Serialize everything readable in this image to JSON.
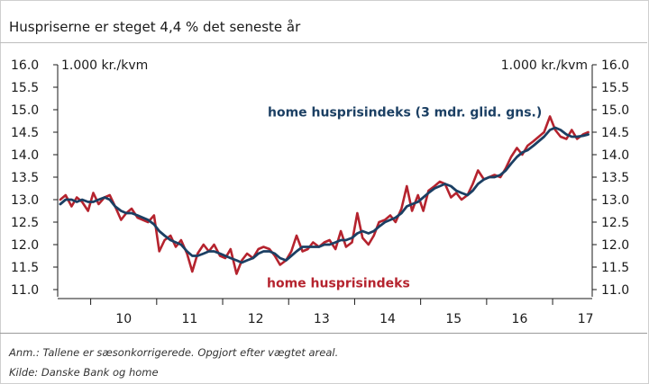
{
  "header": {
    "title": "Huspriserne er steget 4,4 % det seneste år"
  },
  "footer": {
    "note": "Anm.: Tallene er sæsonkorrigerede. Opgjort efter vægtet areal.",
    "source": "Kilde: Danske Bank og home"
  },
  "chart_data": {
    "type": "line",
    "title": "Huspriserne er steget 4,4 % det seneste år",
    "y_unit_left": "1.000 kr./kvm",
    "y_unit_right": "1.000 kr./kvm",
    "ylim": [
      11.0,
      16.0
    ],
    "yticks": [
      "11.0",
      "11.5",
      "12.0",
      "12.5",
      "13.0",
      "13.5",
      "14.0",
      "14.5",
      "15.0",
      "15.5",
      "16.0"
    ],
    "xlim": [
      2009.5,
      2017.6
    ],
    "xtick_labels": [
      "10",
      "11",
      "12",
      "13",
      "14",
      "15",
      "16",
      "17"
    ],
    "grid": false,
    "colors": {
      "raw": "#b5232e",
      "smoothed": "#1b3f63",
      "axis": "#1a1a1a"
    },
    "series": [
      {
        "name": "home husprisindeks",
        "label_position": "bottom-middle",
        "x": [
          2009.54,
          2009.62,
          2009.71,
          2009.79,
          2009.87,
          2009.96,
          2010.04,
          2010.12,
          2010.21,
          2010.29,
          2010.37,
          2010.46,
          2010.54,
          2010.62,
          2010.71,
          2010.79,
          2010.87,
          2010.96,
          2011.04,
          2011.12,
          2011.21,
          2011.29,
          2011.37,
          2011.46,
          2011.54,
          2011.62,
          2011.71,
          2011.79,
          2011.87,
          2011.96,
          2012.04,
          2012.12,
          2012.21,
          2012.29,
          2012.37,
          2012.46,
          2012.54,
          2012.62,
          2012.71,
          2012.79,
          2012.87,
          2012.96,
          2013.04,
          2013.12,
          2013.21,
          2013.29,
          2013.37,
          2013.46,
          2013.54,
          2013.62,
          2013.71,
          2013.79,
          2013.87,
          2013.96,
          2014.04,
          2014.12,
          2014.21,
          2014.29,
          2014.37,
          2014.46,
          2014.54,
          2014.62,
          2014.71,
          2014.79,
          2014.87,
          2014.96,
          2015.04,
          2015.12,
          2015.21,
          2015.29,
          2015.37,
          2015.46,
          2015.54,
          2015.62,
          2015.71,
          2015.79,
          2015.87,
          2015.96,
          2016.04,
          2016.12,
          2016.21,
          2016.29,
          2016.37,
          2016.46,
          2016.54,
          2016.62,
          2016.71,
          2016.79,
          2016.87,
          2016.96,
          2017.04,
          2017.12,
          2017.21,
          2017.29,
          2017.37,
          2017.46,
          2017.54
        ],
        "y": [
          13.0,
          13.1,
          12.85,
          13.05,
          12.95,
          12.75,
          13.15,
          12.9,
          13.05,
          13.1,
          12.85,
          12.55,
          12.7,
          12.8,
          12.6,
          12.55,
          12.5,
          12.65,
          11.85,
          12.1,
          12.2,
          11.95,
          12.1,
          11.8,
          11.4,
          11.8,
          12.0,
          11.85,
          12.0,
          11.75,
          11.7,
          11.9,
          11.35,
          11.65,
          11.8,
          11.7,
          11.9,
          11.95,
          11.9,
          11.75,
          11.55,
          11.65,
          11.85,
          12.2,
          11.85,
          11.9,
          12.05,
          11.95,
          12.05,
          12.1,
          11.9,
          12.3,
          11.95,
          12.05,
          12.7,
          12.15,
          12.0,
          12.2,
          12.5,
          12.55,
          12.65,
          12.5,
          12.8,
          13.3,
          12.75,
          13.1,
          12.75,
          13.2,
          13.3,
          13.4,
          13.35,
          13.05,
          13.15,
          13.0,
          13.1,
          13.35,
          13.65,
          13.45,
          13.5,
          13.55,
          13.5,
          13.7,
          13.95,
          14.15,
          14.0,
          14.2,
          14.3,
          14.4,
          14.5,
          14.85,
          14.55,
          14.4,
          14.35,
          14.55,
          14.35,
          14.45,
          14.5
        ]
      },
      {
        "name": "home husprisindeks (3 mdr. glid. gns.)",
        "label_position": "top-middle",
        "x": [
          2009.54,
          2009.62,
          2009.71,
          2009.79,
          2009.87,
          2009.96,
          2010.04,
          2010.12,
          2010.21,
          2010.29,
          2010.37,
          2010.46,
          2010.54,
          2010.62,
          2010.71,
          2010.79,
          2010.87,
          2010.96,
          2011.04,
          2011.12,
          2011.21,
          2011.29,
          2011.37,
          2011.46,
          2011.54,
          2011.62,
          2011.71,
          2011.79,
          2011.87,
          2011.96,
          2012.04,
          2012.12,
          2012.21,
          2012.29,
          2012.37,
          2012.46,
          2012.54,
          2012.62,
          2012.71,
          2012.79,
          2012.87,
          2012.96,
          2013.04,
          2013.12,
          2013.21,
          2013.29,
          2013.37,
          2013.46,
          2013.54,
          2013.62,
          2013.71,
          2013.79,
          2013.87,
          2013.96,
          2014.04,
          2014.12,
          2014.21,
          2014.29,
          2014.37,
          2014.46,
          2014.54,
          2014.62,
          2014.71,
          2014.79,
          2014.87,
          2014.96,
          2015.04,
          2015.12,
          2015.21,
          2015.29,
          2015.37,
          2015.46,
          2015.54,
          2015.62,
          2015.71,
          2015.79,
          2015.87,
          2015.96,
          2016.04,
          2016.12,
          2016.21,
          2016.29,
          2016.37,
          2016.46,
          2016.54,
          2016.62,
          2016.71,
          2016.79,
          2016.87,
          2016.96,
          2017.04,
          2017.12,
          2017.21,
          2017.29,
          2017.37,
          2017.46,
          2017.54
        ],
        "y": [
          12.9,
          13.0,
          13.0,
          12.95,
          13.0,
          12.95,
          12.95,
          13.0,
          13.05,
          13.0,
          12.85,
          12.75,
          12.7,
          12.7,
          12.65,
          12.6,
          12.55,
          12.45,
          12.3,
          12.2,
          12.1,
          12.05,
          12.0,
          11.85,
          11.75,
          11.75,
          11.8,
          11.85,
          11.85,
          11.8,
          11.75,
          11.7,
          11.65,
          11.6,
          11.65,
          11.7,
          11.8,
          11.85,
          11.85,
          11.8,
          11.7,
          11.65,
          11.75,
          11.85,
          11.95,
          11.95,
          11.95,
          11.95,
          12.0,
          12.0,
          12.05,
          12.1,
          12.1,
          12.15,
          12.25,
          12.3,
          12.25,
          12.3,
          12.4,
          12.5,
          12.55,
          12.6,
          12.7,
          12.85,
          12.9,
          12.95,
          13.05,
          13.15,
          13.25,
          13.3,
          13.35,
          13.3,
          13.2,
          13.15,
          13.1,
          13.2,
          13.35,
          13.45,
          13.5,
          13.5,
          13.55,
          13.65,
          13.8,
          13.95,
          14.05,
          14.1,
          14.2,
          14.3,
          14.4,
          14.55,
          14.6,
          14.55,
          14.45,
          14.4,
          14.4,
          14.42,
          14.45
        ]
      }
    ]
  }
}
